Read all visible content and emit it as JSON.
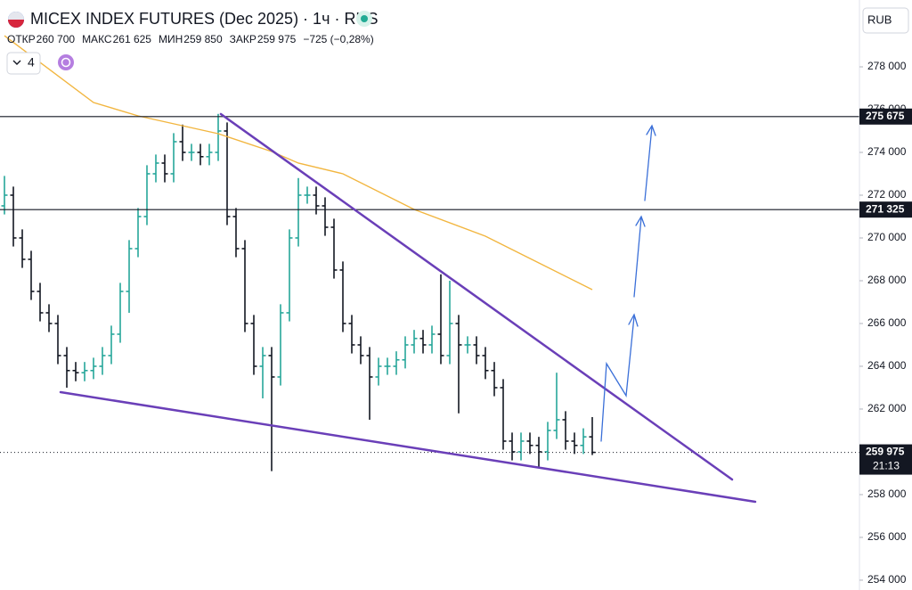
{
  "header": {
    "title": "MICEX INDEX FUTURES (Dec 2025) · 1ч · RUS",
    "ohlc": [
      {
        "label": "ОТКР",
        "value": "260 700"
      },
      {
        "label": "МАКС",
        "value": "261 625"
      },
      {
        "label": "МИН",
        "value": "259 850"
      },
      {
        "label": "ЗАКР",
        "value": "259 975"
      }
    ],
    "change": "−725 (−0,28%)",
    "indicators": "4",
    "currency": "RUB"
  },
  "chart_data": {
    "type": "ohlc",
    "up_color": "#26a69a",
    "down_color": "#131722",
    "ma_color": "#f2b640",
    "xlim": [
      -0.5,
      96
    ],
    "ylim": [
      253540,
      281125
    ],
    "yticks": [
      {
        "value": 254000,
        "label": "254 000"
      },
      {
        "value": 256000,
        "label": "256 000"
      },
      {
        "value": 258000,
        "label": "258 000"
      },
      {
        "value": 260000,
        "label": "260 000"
      },
      {
        "value": 262000,
        "label": "262 000"
      },
      {
        "value": 264000,
        "label": "264 000"
      },
      {
        "value": 266000,
        "label": "266 000"
      },
      {
        "value": 268000,
        "label": "268 000"
      },
      {
        "value": 270000,
        "label": "270 000"
      },
      {
        "value": 272000,
        "label": "272 000"
      },
      {
        "value": 274000,
        "label": "274 000"
      },
      {
        "value": 276000,
        "label": "276 000"
      },
      {
        "value": 278000,
        "label": "278 000"
      }
    ],
    "open": [
      271500,
      272000,
      270000,
      269000,
      267500,
      266500,
      266000,
      264500,
      263800,
      263700,
      263800,
      264000,
      264500,
      265500,
      267500,
      269500,
      271000,
      273000,
      273500,
      273000,
      274500,
      274000,
      274000,
      273800,
      274000,
      275000,
      271000,
      269500,
      266000,
      264000,
      264500,
      263500,
      266500,
      270000,
      272000,
      272000,
      271500,
      270500,
      268500,
      266000,
      265000,
      264500,
      263500,
      264000,
      264000,
      264300,
      265000,
      265300,
      265000,
      265500,
      264500,
      266000,
      265000,
      265000,
      264500,
      263800,
      263000,
      260500,
      260000,
      260500,
      260300,
      260000,
      261000,
      261500,
      260500,
      260300,
      260700
    ],
    "high": [
      272900,
      272400,
      270400,
      269400,
      267900,
      266900,
      266400,
      264900,
      264200,
      264200,
      264400,
      264900,
      265900,
      267900,
      269900,
      271400,
      273400,
      273900,
      273900,
      274900,
      275300,
      274400,
      274400,
      274400,
      275800,
      275400,
      271400,
      269900,
      266400,
      264900,
      264900,
      266900,
      270400,
      272800,
      272400,
      272400,
      271900,
      270900,
      268900,
      266400,
      265400,
      264900,
      264400,
      264400,
      264700,
      265400,
      265700,
      265700,
      265900,
      268300,
      268000,
      266400,
      265400,
      265400,
      264900,
      264200,
      263400,
      260900,
      260900,
      260900,
      260700,
      261400,
      263700,
      261900,
      260900,
      261100,
      261625
    ],
    "low": [
      271100,
      269600,
      268600,
      267100,
      266100,
      265600,
      264100,
      263000,
      263300,
      263300,
      263400,
      263600,
      264100,
      265100,
      266500,
      269100,
      270600,
      272600,
      272600,
      272600,
      273600,
      273600,
      273400,
      273400,
      273600,
      270600,
      269100,
      265600,
      263600,
      262500,
      259100,
      263100,
      266100,
      269600,
      271600,
      271100,
      270100,
      268100,
      265600,
      264600,
      264100,
      261500,
      263100,
      263600,
      263600,
      263900,
      264600,
      264600,
      264600,
      264100,
      264100,
      261800,
      264600,
      264100,
      263400,
      262600,
      260100,
      259600,
      259600,
      259900,
      259300,
      259600,
      260600,
      260100,
      259900,
      259900,
      259850
    ],
    "close": [
      272000,
      270000,
      269000,
      267500,
      266500,
      266000,
      264500,
      263800,
      263700,
      263800,
      264000,
      264500,
      265500,
      267500,
      269500,
      271000,
      273000,
      273500,
      273000,
      274500,
      274000,
      274000,
      273800,
      274000,
      275000,
      271000,
      269500,
      266000,
      264000,
      264500,
      263500,
      266500,
      270000,
      272000,
      272000,
      271500,
      270500,
      268500,
      266000,
      265000,
      264500,
      263500,
      264000,
      264000,
      264300,
      265000,
      265300,
      265000,
      265500,
      264500,
      266000,
      265000,
      265000,
      264500,
      263800,
      263000,
      260500,
      260000,
      260500,
      260300,
      260000,
      261000,
      261500,
      260500,
      260300,
      260700,
      259975
    ],
    "ma": {
      "x": [
        0,
        10,
        15,
        24,
        30,
        33,
        38,
        46,
        54,
        60,
        66
      ],
      "values": [
        279458,
        276333,
        275708,
        274875,
        274042,
        273500,
        273000,
        271333,
        270083,
        268833,
        267583
      ]
    },
    "levels": [
      {
        "value": 275675,
        "label": "275 675"
      },
      {
        "value": 271325,
        "label": "271 325"
      }
    ],
    "last_price": {
      "value": 259975,
      "label": "259 975",
      "time": "21:13"
    }
  }
}
